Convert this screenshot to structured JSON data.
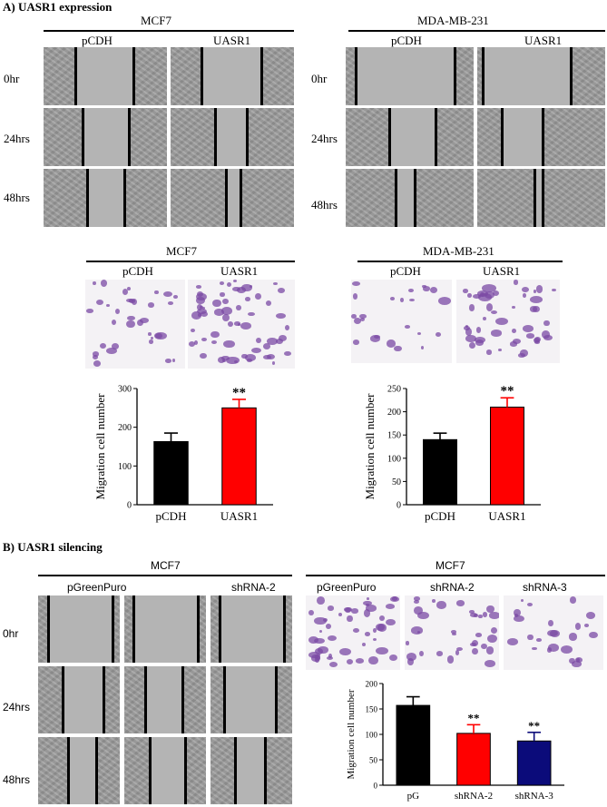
{
  "sectionA": {
    "title": "A) UASR1 expression",
    "wound_left": {
      "cell_line": "MCF7",
      "columns": [
        "pCDH",
        "UASR1"
      ],
      "rows": [
        "0hr",
        "24hrs",
        "48hrs"
      ]
    },
    "wound_right": {
      "cell_line": "MDA-MB-231",
      "columns": [
        "pCDH",
        "UASR1"
      ],
      "rows": [
        "0hr",
        "24hrs",
        "48hrs"
      ]
    },
    "transwell_left": {
      "cell_line": "MCF7",
      "columns": [
        "pCDH",
        "UASR1"
      ]
    },
    "transwell_right": {
      "cell_line": "MDA-MB-231",
      "columns": [
        "pCDH",
        "UASR1"
      ]
    }
  },
  "sectionB": {
    "title": "B) UASR1 silencing",
    "wound": {
      "cell_line": "MCF7",
      "columns": [
        "pGreenPuro",
        "shRNA-2"
      ],
      "rows": [
        "0hr",
        "24hrs",
        "48hrs"
      ]
    },
    "transwell": {
      "cell_line": "MCF7",
      "columns": [
        "pGreenPuro",
        "shRNA-2",
        "shRNA-3"
      ]
    }
  },
  "colors": {
    "control": "#000000",
    "uasr1": "#ff0000",
    "shRNA-3": "#0b0b7a",
    "crystal_violet": "#7b4aa4"
  },
  "chart_data": [
    {
      "type": "bar",
      "ylabel": "Migration cell number",
      "categories": [
        "pCDH",
        "UASR1"
      ],
      "values": [
        163,
        250
      ],
      "errors": [
        22,
        22
      ],
      "ylim": [
        0,
        300
      ],
      "yticks": [
        "0",
        "100",
        "200",
        "300"
      ],
      "significance": [
        "",
        "**"
      ]
    },
    {
      "type": "bar",
      "ylabel": "Migration cell number",
      "categories": [
        "pCDH",
        "UASR1"
      ],
      "values": [
        140,
        210
      ],
      "errors": [
        14,
        20
      ],
      "ylim": [
        0,
        250
      ],
      "yticks": [
        "0",
        "50",
        "100",
        "150",
        "200",
        "250"
      ],
      "significance": [
        "",
        "**"
      ]
    },
    {
      "type": "bar",
      "ylabel": "Migration cell number",
      "categories": [
        "pG",
        "shRNA-2",
        "shRNA-3"
      ],
      "values": [
        157,
        102,
        87
      ],
      "errors": [
        17,
        17,
        17
      ],
      "ylim": [
        0,
        200
      ],
      "yticks": [
        "0",
        "50",
        "100",
        "150",
        "200"
      ],
      "significance": [
        "",
        "**",
        "**"
      ]
    }
  ]
}
